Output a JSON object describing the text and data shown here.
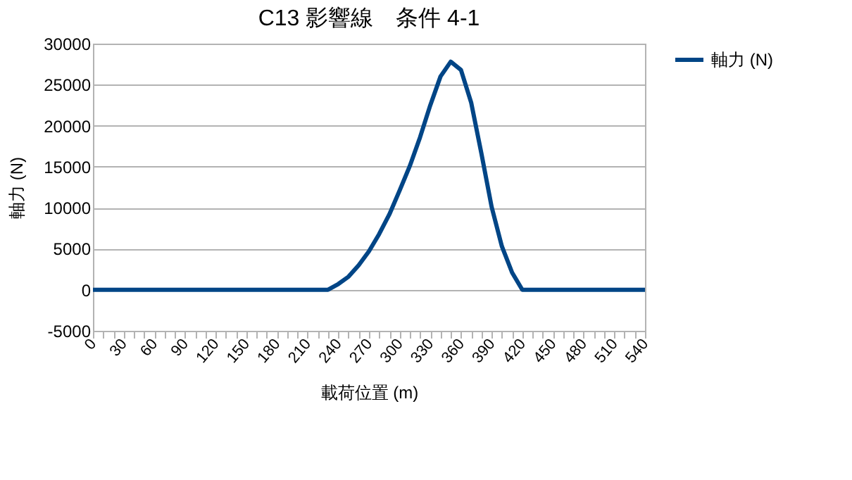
{
  "chart_data": {
    "type": "line",
    "title": "C13 影響線　条件 4-1",
    "xlabel": "載荷位置 (m)",
    "ylabel": "軸力 (N)",
    "x": [
      0,
      10,
      20,
      30,
      40,
      50,
      60,
      70,
      80,
      90,
      100,
      110,
      120,
      130,
      140,
      150,
      160,
      170,
      180,
      190,
      200,
      210,
      220,
      230,
      240,
      250,
      260,
      270,
      280,
      290,
      300,
      310,
      320,
      330,
      340,
      350,
      360,
      370,
      380,
      390,
      400,
      410,
      420,
      430,
      440,
      450,
      460,
      470,
      480,
      490,
      500,
      510,
      520,
      530,
      540
    ],
    "series": [
      {
        "name": "軸力 (N)",
        "color": "#004586",
        "values": [
          0,
          0,
          0,
          0,
          0,
          0,
          0,
          0,
          0,
          0,
          0,
          0,
          0,
          0,
          0,
          0,
          0,
          0,
          0,
          0,
          0,
          0,
          0,
          0,
          700,
          1600,
          3000,
          4700,
          6800,
          9200,
          12100,
          15100,
          18600,
          22500,
          26000,
          27800,
          26800,
          22800,
          16600,
          10100,
          5300,
          2100,
          0,
          0,
          0,
          0,
          0,
          0,
          0,
          0,
          0,
          0,
          0,
          0,
          0
        ]
      }
    ],
    "xlim": [
      0,
      540
    ],
    "xticks": [
      0,
      {
        "value": 10,
        "label": null
      },
      {
        "value": 20,
        "label": null
      },
      30,
      {
        "value": 40,
        "label": null
      },
      {
        "value": 50,
        "label": null
      },
      60,
      {
        "value": 70,
        "label": null
      },
      {
        "value": 80,
        "label": null
      },
      90,
      {
        "value": 100,
        "label": null
      },
      {
        "value": 110,
        "label": null
      },
      120,
      {
        "value": 130,
        "label": null
      },
      {
        "value": 140,
        "label": null
      },
      150,
      {
        "value": 160,
        "label": null
      },
      {
        "value": 170,
        "label": null
      },
      180,
      {
        "value": 190,
        "label": null
      },
      {
        "value": 200,
        "label": null
      },
      210,
      {
        "value": 220,
        "label": null
      },
      {
        "value": 230,
        "label": null
      },
      240,
      {
        "value": 250,
        "label": null
      },
      {
        "value": 260,
        "label": null
      },
      270,
      {
        "value": 280,
        "label": null
      },
      {
        "value": 290,
        "label": null
      },
      300,
      {
        "value": 310,
        "label": null
      },
      {
        "value": 320,
        "label": null
      },
      330,
      {
        "value": 340,
        "label": null
      },
      {
        "value": 350,
        "label": null
      },
      360,
      {
        "value": 370,
        "label": null
      },
      {
        "value": 380,
        "label": null
      },
      390,
      {
        "value": 400,
        "label": null
      },
      {
        "value": 410,
        "label": null
      },
      420,
      {
        "value": 430,
        "label": null
      },
      {
        "value": 440,
        "label": null
      },
      450,
      {
        "value": 460,
        "label": null
      },
      {
        "value": 470,
        "label": null
      },
      480,
      {
        "value": 490,
        "label": null
      },
      {
        "value": 500,
        "label": null
      },
      510,
      {
        "value": 520,
        "label": null
      },
      {
        "value": 530,
        "label": null
      },
      540
    ],
    "ylim": [
      -5000,
      30000
    ],
    "yticks": [
      -5000,
      0,
      5000,
      10000,
      15000,
      20000,
      25000,
      30000
    ],
    "grid": "y",
    "legend": "right",
    "marker": "none",
    "line_style": "solid"
  }
}
